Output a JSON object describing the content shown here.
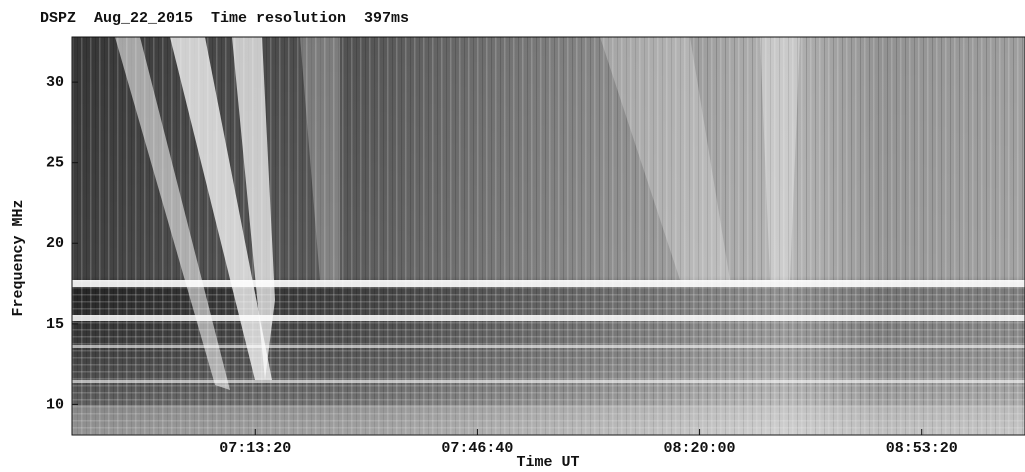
{
  "chart_data": {
    "type": "spectrogram",
    "title": "DSPZ  Aug_22_2015  Time resolution  397ms",
    "x_label": "Time UT",
    "y_label": "Frequency MHz",
    "xlim": [
      24350,
      32930
    ],
    "xticks": [
      {
        "value": 26000,
        "label": "07:13:20"
      },
      {
        "value": 28000,
        "label": "07:46:40"
      },
      {
        "value": 30000,
        "label": "08:20:00"
      },
      {
        "value": 32000,
        "label": "08:53:20"
      }
    ],
    "ylim": [
      8.1,
      32.8
    ],
    "yticks": [
      10,
      15,
      20,
      25,
      30
    ],
    "colormap": "gray"
  }
}
